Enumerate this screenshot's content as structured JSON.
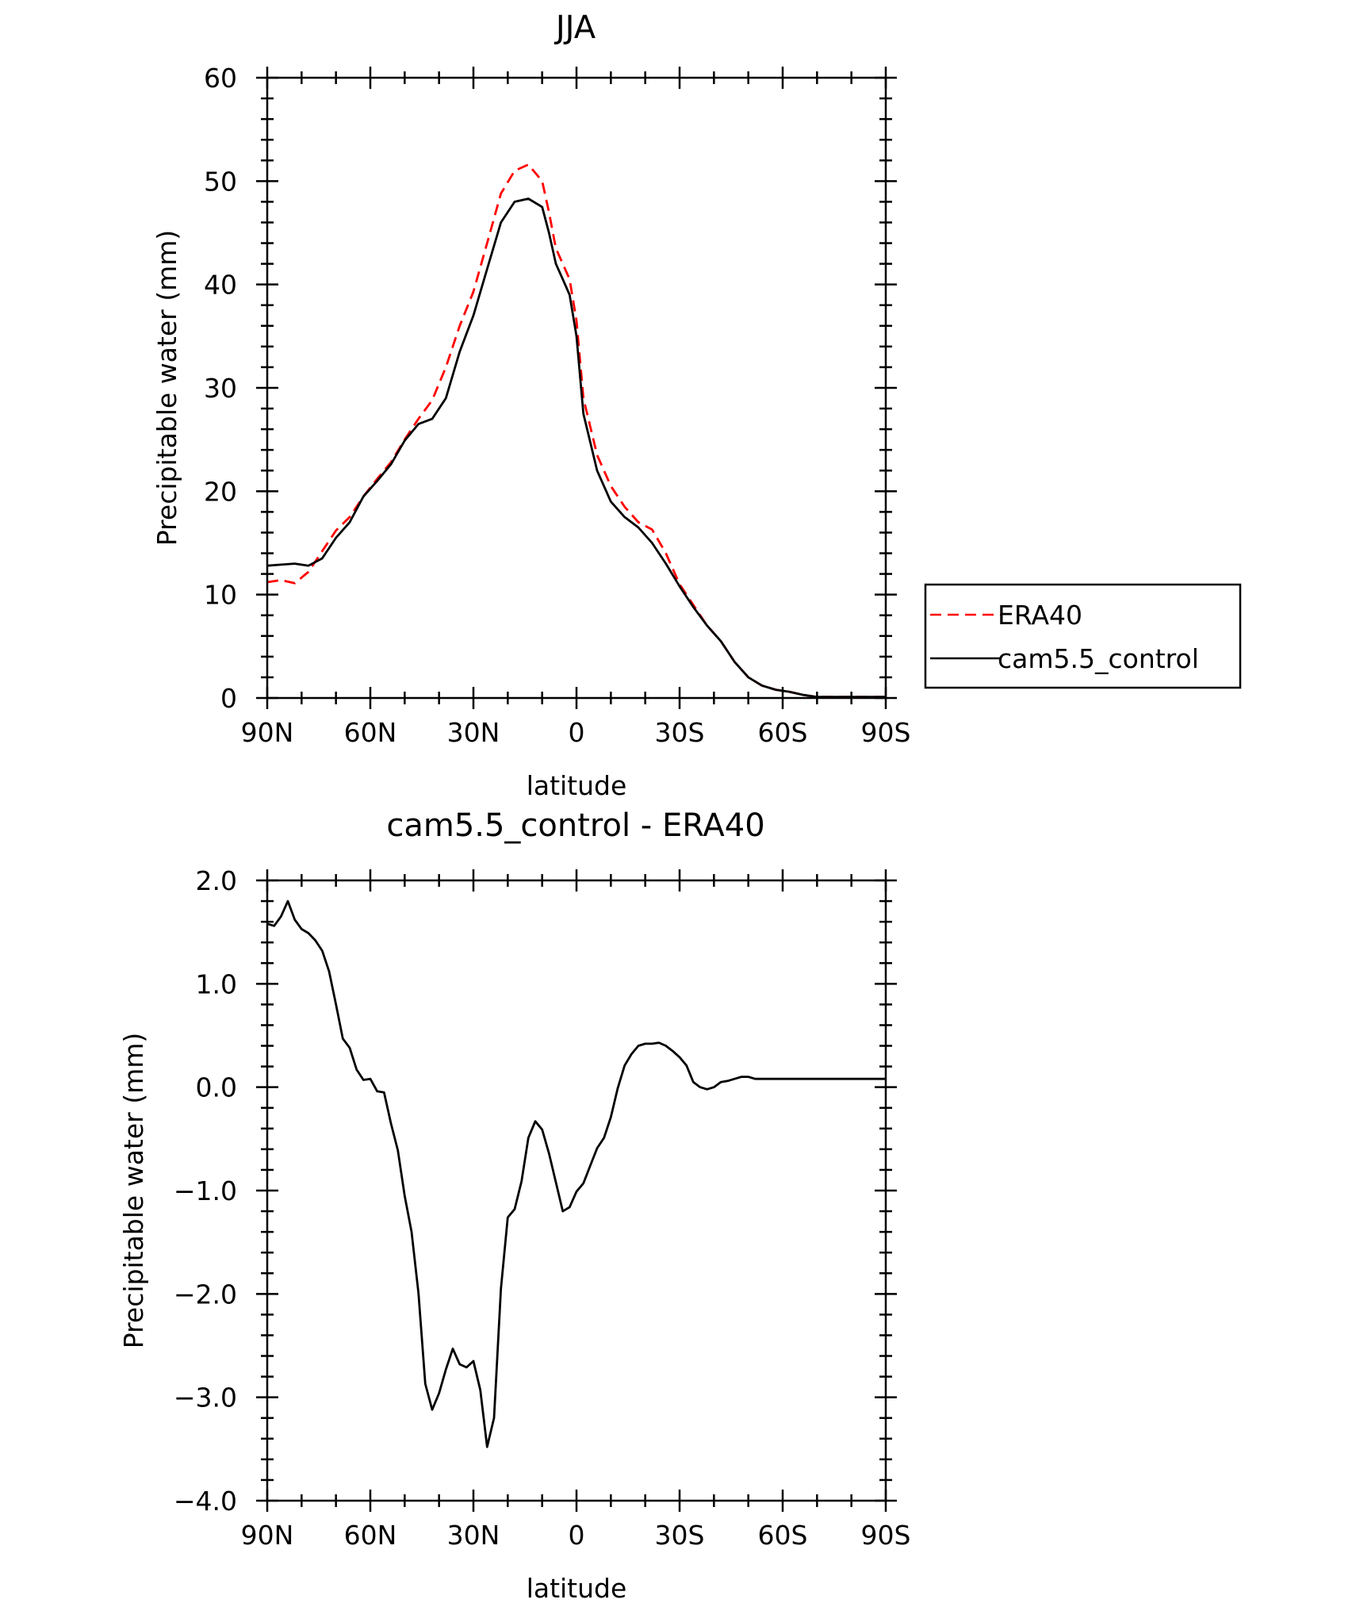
{
  "chart_data": [
    {
      "type": "line",
      "title": "JJA",
      "xlabel": "latitude",
      "ylabel": "Precipitable water (mm)",
      "xlim": [
        90,
        -90
      ],
      "ylim": [
        0,
        60
      ],
      "yticks": [
        0,
        10,
        20,
        30,
        40,
        50,
        60
      ],
      "yticklabels": [
        "0",
        "10",
        "20",
        "30",
        "40",
        "50",
        "60"
      ],
      "xticks": [
        90,
        60,
        30,
        0,
        -30,
        -60,
        -90
      ],
      "xticklabels": [
        "90N",
        "60N",
        "30N",
        "0",
        "30S",
        "60S",
        "90S"
      ],
      "legend_position": "right",
      "series": [
        {
          "name": "ERA40",
          "color": "#ff0000",
          "dash": "dashed",
          "x": [
            90,
            86,
            82,
            78,
            74,
            70,
            66,
            62,
            58,
            54,
            50,
            46,
            42,
            38,
            34,
            30,
            26,
            22,
            18,
            14,
            10,
            8,
            6,
            4,
            2,
            0,
            -2,
            -6,
            -10,
            -14,
            -18,
            -22,
            -26,
            -30,
            -34,
            -38,
            -42,
            -46,
            -50,
            -54,
            -58,
            -62,
            -66,
            -70,
            -74,
            -78,
            -82,
            -86,
            -90
          ],
          "values": [
            11.2,
            11.4,
            11.1,
            12.2,
            14.2,
            16.2,
            17.5,
            19.5,
            21.2,
            22.8,
            25.0,
            27.0,
            28.8,
            32.0,
            36.0,
            39.3,
            44.0,
            48.8,
            51.0,
            51.6,
            50.0,
            47.0,
            43.5,
            42.0,
            40.5,
            36.5,
            29.0,
            23.5,
            20.5,
            18.5,
            17.0,
            16.3,
            14.0,
            11.0,
            9.0,
            7.0,
            5.5,
            3.5,
            2.0,
            1.2,
            0.8,
            0.6,
            0.3,
            0.1,
            0.1,
            0.1,
            0.1,
            0.1,
            0.1
          ]
        },
        {
          "name": "cam5.5_control",
          "color": "#000000",
          "dash": "solid",
          "x": [
            90,
            86,
            82,
            78,
            74,
            70,
            66,
            62,
            58,
            54,
            50,
            46,
            42,
            38,
            34,
            30,
            26,
            22,
            18,
            14,
            10,
            8,
            6,
            4,
            2,
            0,
            -2,
            -6,
            -10,
            -14,
            -18,
            -22,
            -26,
            -30,
            -34,
            -38,
            -42,
            -46,
            -50,
            -54,
            -58,
            -62,
            -66,
            -70,
            -74,
            -78,
            -82,
            -86,
            -90
          ],
          "values": [
            12.8,
            12.9,
            13.0,
            12.8,
            13.5,
            15.5,
            17.0,
            19.5,
            21.0,
            22.6,
            24.9,
            26.5,
            27.0,
            29.0,
            33.5,
            37.0,
            41.5,
            46.0,
            48.0,
            48.3,
            47.5,
            45.0,
            42.0,
            40.5,
            39.0,
            35.0,
            27.5,
            22.0,
            19.0,
            17.5,
            16.5,
            15.0,
            13.0,
            10.8,
            8.8,
            7.0,
            5.5,
            3.5,
            2.0,
            1.2,
            0.8,
            0.6,
            0.3,
            0.1,
            0.1,
            0.1,
            0.1,
            0.1,
            0.1
          ]
        }
      ]
    },
    {
      "type": "line",
      "title": "cam5.5_control - ERA40",
      "xlabel": "latitude",
      "ylabel": "Precipitable water (mm)",
      "xlim": [
        90,
        -90
      ],
      "ylim": [
        -4.0,
        2.0
      ],
      "yticks": [
        -4,
        -3,
        -2,
        -1,
        0,
        1,
        2
      ],
      "yticklabels": [
        "−4.0",
        "−3.0",
        "−2.0",
        "−1.0",
        "0.0",
        "1.0",
        "2.0"
      ],
      "xticks": [
        90,
        60,
        30,
        0,
        -30,
        -60,
        -90
      ],
      "xticklabels": [
        "90N",
        "60N",
        "30N",
        "0",
        "30S",
        "60S",
        "90S"
      ],
      "series": [
        {
          "color": "#000000",
          "dash": "solid",
          "x": [
            90,
            88,
            86,
            84,
            82,
            80,
            78,
            76,
            74,
            72,
            70,
            68,
            66,
            64,
            62,
            60,
            58,
            56,
            54,
            52,
            50,
            48,
            46,
            44,
            42,
            40,
            38,
            36,
            34,
            32,
            30,
            28,
            26,
            24,
            22,
            20,
            18,
            16,
            14,
            12,
            10,
            8,
            6,
            4,
            2,
            0,
            -2,
            -4,
            -6,
            -8,
            -10,
            -12,
            -14,
            -16,
            -18,
            -20,
            -22,
            -24,
            -26,
            -28,
            -30,
            -32,
            -34,
            -36,
            -38,
            -40,
            -42,
            -44,
            -46,
            -48,
            -50,
            -52,
            -54,
            -56,
            -58,
            -60,
            -62,
            -64,
            -66,
            -68,
            -70,
            -72,
            -74,
            -76,
            -78,
            -80,
            -82,
            -84,
            -86,
            -88,
            -90
          ],
          "values": [
            1.58,
            1.56,
            1.65,
            1.8,
            1.62,
            1.53,
            1.49,
            1.42,
            1.32,
            1.12,
            0.8,
            0.47,
            0.38,
            0.17,
            0.07,
            0.08,
            -0.04,
            -0.05,
            -0.35,
            -0.61,
            -1.05,
            -1.4,
            -1.99,
            -2.87,
            -3.12,
            -2.96,
            -2.73,
            -2.53,
            -2.68,
            -2.71,
            -2.65,
            -2.93,
            -3.48,
            -3.2,
            -1.95,
            -1.26,
            -1.18,
            -0.91,
            -0.49,
            -0.33,
            -0.41,
            -0.64,
            -0.92,
            -1.2,
            -1.16,
            -1.01,
            -0.93,
            -0.76,
            -0.59,
            -0.49,
            -0.29,
            -0.01,
            0.21,
            0.32,
            0.4,
            0.42,
            0.42,
            0.43,
            0.4,
            0.35,
            0.29,
            0.21,
            0.05,
            0.0,
            -0.02,
            0.0,
            0.05,
            0.06,
            0.08,
            0.1,
            0.1,
            0.08,
            0.08,
            0.08,
            0.08,
            0.08,
            0.08,
            0.08,
            0.08,
            0.08,
            0.08,
            0.08,
            0.08,
            0.08,
            0.08,
            0.08,
            0.08,
            0.08,
            0.08,
            0.08,
            0.08
          ]
        }
      ]
    }
  ]
}
